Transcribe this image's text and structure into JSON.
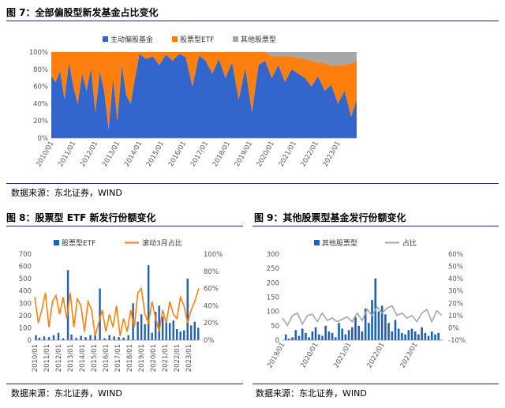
{
  "fig7": {
    "title": "图 7：全部偏股型新发基金占比变化",
    "source": "数据来源：东北证券，WIND",
    "chart_data": {
      "type": "area",
      "stacked_percent": true,
      "legend": [
        "主动偏股基金",
        "股票型ETF",
        "其他股票型"
      ],
      "colors": [
        "#3366cc",
        "#ff7f0e",
        "#a6a6a6"
      ],
      "y_ticks": [
        "0%",
        "20%",
        "40%",
        "60%",
        "80%",
        "100%"
      ],
      "x_ticks": [
        "2010/01",
        "2011/01",
        "2012/01",
        "2013/01",
        "2014/01",
        "2015/01",
        "2016/01",
        "2017/01",
        "2018/01",
        "2019/01",
        "2020/01",
        "2021/01",
        "2022/01",
        "2023/01"
      ],
      "x_range": [
        2010.0,
        2023.85
      ],
      "series": [
        {
          "name": "主动偏股基金",
          "x": [
            2010.0,
            2010.2,
            2010.4,
            2010.6,
            2010.8,
            2011.0,
            2011.2,
            2011.4,
            2011.6,
            2011.8,
            2012.0,
            2012.2,
            2012.4,
            2012.6,
            2012.8,
            2013.0,
            2013.2,
            2013.4,
            2013.6,
            2013.8,
            2014.0,
            2014.3,
            2014.6,
            2014.9,
            2015.2,
            2015.5,
            2015.8,
            2016.1,
            2016.4,
            2016.7,
            2017.0,
            2017.3,
            2017.6,
            2017.9,
            2018.2,
            2018.5,
            2018.8,
            2019.1,
            2019.4,
            2019.7,
            2020.0,
            2020.3,
            2020.6,
            2020.9,
            2021.2,
            2021.5,
            2021.8,
            2022.1,
            2022.4,
            2022.7,
            2023.0,
            2023.3,
            2023.6,
            2023.85
          ],
          "values": [
            0.72,
            0.65,
            0.78,
            0.45,
            0.88,
            0.6,
            0.4,
            0.75,
            0.55,
            0.82,
            0.3,
            0.78,
            0.55,
            0.1,
            0.7,
            0.2,
            0.85,
            0.5,
            0.4,
            0.7,
            0.98,
            0.92,
            0.95,
            0.85,
            0.97,
            0.9,
            0.98,
            0.94,
            0.6,
            0.96,
            0.9,
            0.75,
            0.92,
            0.7,
            0.88,
            0.45,
            0.82,
            0.3,
            0.85,
            0.9,
            0.7,
            0.85,
            0.65,
            0.8,
            0.75,
            0.7,
            0.6,
            0.72,
            0.55,
            0.62,
            0.4,
            0.55,
            0.25,
            0.45
          ]
        },
        {
          "name": "股票型ETF",
          "values": [
            0.28,
            0.35,
            0.22,
            0.55,
            0.12,
            0.4,
            0.6,
            0.25,
            0.45,
            0.18,
            0.7,
            0.22,
            0.45,
            0.9,
            0.3,
            0.8,
            0.15,
            0.5,
            0.6,
            0.3,
            0.02,
            0.08,
            0.05,
            0.15,
            0.03,
            0.1,
            0.02,
            0.06,
            0.4,
            0.04,
            0.1,
            0.25,
            0.08,
            0.3,
            0.12,
            0.55,
            0.18,
            0.7,
            0.15,
            0.1,
            0.25,
            0.1,
            0.3,
            0.15,
            0.18,
            0.22,
            0.3,
            0.16,
            0.32,
            0.22,
            0.45,
            0.3,
            0.62,
            0.45
          ]
        },
        {
          "name": "其他股票型",
          "values": [
            0,
            0,
            0,
            0,
            0,
            0,
            0,
            0,
            0,
            0,
            0,
            0,
            0,
            0,
            0,
            0,
            0,
            0,
            0,
            0,
            0,
            0,
            0,
            0,
            0,
            0,
            0,
            0,
            0,
            0,
            0,
            0,
            0,
            0,
            0,
            0,
            0,
            0,
            0,
            0,
            0.05,
            0.05,
            0.05,
            0.05,
            0.07,
            0.08,
            0.1,
            0.12,
            0.13,
            0.16,
            0.15,
            0.15,
            0.13,
            0.1
          ]
        }
      ]
    }
  },
  "fig8": {
    "title": "图 8：股票型 ETF 新发行份额变化",
    "source": "数据来源：东北证券，WIND",
    "chart_data": {
      "type": "bar",
      "legend": [
        "股票型ETF",
        "滚动3月占比"
      ],
      "colors": [
        "#1f5fb4",
        "#ff7f0e"
      ],
      "y_left_ticks": [
        "0",
        "100",
        "200",
        "300",
        "400",
        "500",
        "600",
        "700"
      ],
      "y_right_ticks": [
        "0%",
        "20%",
        "40%",
        "60%",
        "80%",
        "100%"
      ],
      "y_left_range": [
        0,
        700
      ],
      "y_right_range": [
        0,
        1
      ],
      "x_ticks": [
        "2010/01",
        "2011/01",
        "2012/01",
        "2013/01",
        "2014/01",
        "2015/01",
        "2016/01",
        "2017/01",
        "2018/01",
        "2019/01",
        "2020/01",
        "2021/01",
        "2022/01",
        "2023/01"
      ],
      "x_range": [
        2010.0,
        2023.85
      ],
      "bars": {
        "x": [
          2010.1,
          2010.4,
          2010.8,
          2011.2,
          2011.6,
          2012.0,
          2012.4,
          2012.8,
          2013.1,
          2013.5,
          2013.9,
          2014.3,
          2014.7,
          2015.1,
          2015.5,
          2015.9,
          2016.3,
          2016.7,
          2017.1,
          2017.5,
          2017.9,
          2018.3,
          2018.7,
          2019.0,
          2019.3,
          2019.6,
          2019.9,
          2020.2,
          2020.5,
          2020.8,
          2021.1,
          2021.4,
          2021.7,
          2022.0,
          2022.3,
          2022.6,
          2022.9,
          2023.2,
          2023.5,
          2023.8
        ],
        "values": [
          40,
          20,
          30,
          25,
          40,
          60,
          15,
          570,
          45,
          20,
          35,
          25,
          40,
          50,
          420,
          15,
          40,
          30,
          25,
          20,
          40,
          300,
          150,
          210,
          130,
          610,
          60,
          230,
          280,
          190,
          150,
          140,
          160,
          90,
          70,
          80,
          500,
          120,
          150,
          100
        ]
      },
      "line": {
        "x": [
          2010.0,
          2010.3,
          2010.6,
          2010.9,
          2011.2,
          2011.5,
          2011.8,
          2012.1,
          2012.4,
          2012.7,
          2013.0,
          2013.3,
          2013.6,
          2013.9,
          2014.2,
          2014.5,
          2014.8,
          2015.1,
          2015.4,
          2015.7,
          2016.0,
          2016.3,
          2016.6,
          2016.9,
          2017.2,
          2017.5,
          2017.8,
          2018.1,
          2018.4,
          2018.7,
          2019.0,
          2019.3,
          2019.6,
          2019.9,
          2020.2,
          2020.5,
          2020.8,
          2021.1,
          2021.4,
          2021.7,
          2022.0,
          2022.3,
          2022.6,
          2022.9,
          2023.2,
          2023.5,
          2023.85
        ],
        "values": [
          0.5,
          0.2,
          0.35,
          0.55,
          0.15,
          0.45,
          0.52,
          0.3,
          0.5,
          0.25,
          0.55,
          0.15,
          0.48,
          0.4,
          0.1,
          0.45,
          0.35,
          0.05,
          0.2,
          0.35,
          0.1,
          0.3,
          0.15,
          0.4,
          0.05,
          0.25,
          0.1,
          0.35,
          0.15,
          0.55,
          0.6,
          0.3,
          0.2,
          0.45,
          0.25,
          0.1,
          0.35,
          0.2,
          0.45,
          0.3,
          0.25,
          0.5,
          0.4,
          0.2,
          0.35,
          0.45,
          0.6
        ]
      }
    }
  },
  "fig9": {
    "title": "图 9：其他股票型基金发行份额变化",
    "source": "数据来源：东北证券，WIND",
    "chart_data": {
      "type": "bar",
      "legend": [
        "其他股票型",
        "占比"
      ],
      "colors": [
        "#1f5fb4",
        "#a6a6a6"
      ],
      "y_left_ticks": [
        "0",
        "50",
        "100",
        "150",
        "200",
        "250",
        "300"
      ],
      "y_right_ticks": [
        "-10%",
        "0%",
        "10%",
        "20%",
        "30%",
        "40%",
        "50%",
        "60%"
      ],
      "y_left_range": [
        0,
        300
      ],
      "y_right_range": [
        -0.1,
        0.6
      ],
      "x_ticks": [
        "2019/01",
        "2020/01",
        "2021/01",
        "2022/01",
        "2023/01"
      ],
      "x_range": [
        2019.0,
        2023.85
      ],
      "bars": {
        "x": [
          2019.1,
          2019.2,
          2019.3,
          2019.4,
          2019.5,
          2019.6,
          2019.7,
          2019.8,
          2019.9,
          2020.0,
          2020.1,
          2020.2,
          2020.3,
          2020.4,
          2020.5,
          2020.6,
          2020.7,
          2020.8,
          2020.9,
          2021.0,
          2021.1,
          2021.2,
          2021.3,
          2021.4,
          2021.5,
          2021.6,
          2021.7,
          2021.8,
          2021.9,
          2022.0,
          2022.1,
          2022.2,
          2022.3,
          2022.4,
          2022.5,
          2022.6,
          2022.7,
          2022.8,
          2022.9,
          2023.0,
          2023.1,
          2023.2,
          2023.3,
          2023.4,
          2023.5,
          2023.6,
          2023.7
        ],
        "values": [
          20,
          5,
          10,
          35,
          15,
          40,
          25,
          10,
          30,
          45,
          20,
          15,
          50,
          30,
          25,
          10,
          60,
          40,
          20,
          35,
          45,
          80,
          50,
          30,
          110,
          60,
          140,
          215,
          100,
          120,
          90,
          60,
          30,
          70,
          40,
          25,
          20,
          35,
          40,
          30,
          20,
          45,
          25,
          15,
          30,
          20,
          25
        ]
      },
      "line": {
        "x": [
          2019.0,
          2019.15,
          2019.3,
          2019.45,
          2019.6,
          2019.75,
          2019.9,
          2020.05,
          2020.2,
          2020.35,
          2020.5,
          2020.65,
          2020.8,
          2020.95,
          2021.1,
          2021.25,
          2021.4,
          2021.55,
          2021.7,
          2021.85,
          2022.0,
          2022.15,
          2022.3,
          2022.45,
          2022.6,
          2022.75,
          2022.9,
          2023.05,
          2023.2,
          2023.35,
          2023.5,
          2023.65,
          2023.8
        ],
        "values": [
          0.08,
          0.02,
          0.1,
          0.12,
          0.03,
          0.1,
          0.11,
          0.05,
          0.12,
          0.06,
          0.08,
          0.05,
          0.07,
          0.09,
          0.05,
          0.12,
          0.06,
          0.15,
          0.1,
          0.17,
          0.12,
          0.16,
          0.18,
          0.1,
          0.12,
          0.08,
          0.1,
          0.05,
          0.12,
          0.15,
          0.05,
          0.14,
          0.1
        ]
      }
    }
  }
}
